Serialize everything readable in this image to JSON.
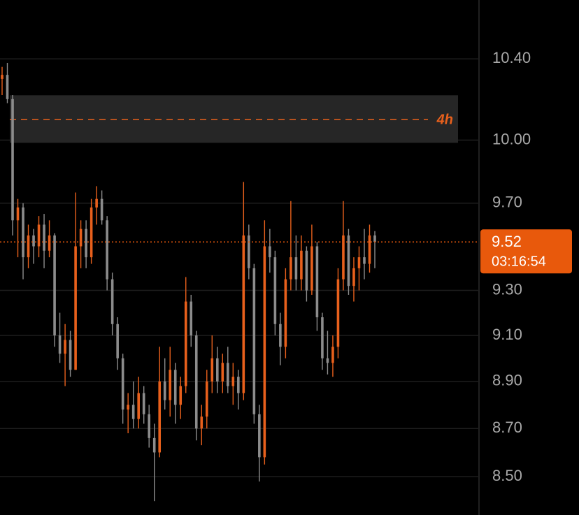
{
  "chart_data": {
    "type": "ohlc",
    "scale": "log",
    "ylim": [
      8.344,
      10.7
    ],
    "yticks": [
      {
        "value": 10.4,
        "label": "10.40"
      },
      {
        "value": 10.0,
        "label": "10.00"
      },
      {
        "value": 9.7,
        "label": "9.70"
      },
      {
        "value": 9.3,
        "label": "9.30"
      },
      {
        "value": 9.1,
        "label": "9.10"
      },
      {
        "value": 8.9,
        "label": "8.90"
      },
      {
        "value": 8.7,
        "label": "8.70"
      },
      {
        "value": 8.5,
        "label": "8.50"
      }
    ],
    "grid": true,
    "up_color": "#e8601c",
    "down_color": "#8c8c8c",
    "open": [
      10.3,
      10.32,
      10.2,
      9.62,
      9.68,
      9.45,
      9.55,
      9.5,
      9.6,
      9.48,
      9.55,
      9.1,
      9.02,
      9.08,
      8.95,
      9.5,
      9.58,
      9.45,
      9.68,
      9.72,
      9.62,
      9.35,
      9.15,
      9.0,
      8.78,
      8.8,
      8.74,
      8.85,
      8.76,
      8.66,
      8.6,
      8.9,
      8.82,
      8.95,
      8.8,
      8.88,
      9.25,
      9.1,
      8.7,
      8.75,
      8.9,
      9.0,
      8.9,
      8.98,
      8.88,
      8.92,
      8.85,
      9.55,
      9.4,
      8.76,
      8.58,
      9.5,
      9.45,
      9.15,
      9.05,
      9.35,
      9.45,
      9.35,
      9.48,
      9.3,
      9.5,
      9.18,
      9.0,
      8.98,
      9.05,
      9.35,
      9.55,
      9.32,
      9.4,
      9.45,
      9.42,
      9.55
    ],
    "high": [
      10.36,
      10.38,
      10.22,
      9.72,
      9.7,
      9.6,
      9.58,
      9.64,
      9.65,
      9.62,
      9.56,
      9.2,
      9.15,
      9.12,
      9.75,
      9.62,
      9.62,
      9.72,
      9.78,
      9.76,
      9.64,
      9.38,
      9.18,
      9.02,
      8.85,
      8.9,
      8.92,
      8.88,
      8.8,
      8.72,
      9.05,
      9.0,
      9.05,
      8.98,
      8.92,
      9.36,
      9.28,
      9.12,
      8.8,
      8.95,
      9.1,
      9.05,
      9.02,
      9.05,
      8.98,
      8.95,
      9.8,
      9.6,
      9.42,
      8.8,
      9.62,
      9.58,
      9.48,
      9.2,
      9.4,
      9.71,
      9.55,
      9.55,
      9.5,
      9.6,
      9.52,
      9.2,
      9.12,
      9.1,
      9.4,
      9.71,
      9.58,
      9.45,
      9.5,
      9.58,
      9.6,
      9.57
    ],
    "low": [
      10.22,
      10.18,
      9.55,
      9.45,
      9.35,
      9.4,
      9.42,
      9.45,
      9.4,
      9.45,
      9.05,
      8.98,
      8.88,
      8.92,
      8.95,
      9.4,
      9.4,
      9.42,
      9.6,
      9.6,
      9.3,
      9.1,
      8.95,
      8.72,
      8.68,
      8.7,
      8.7,
      8.72,
      8.62,
      8.4,
      8.58,
      8.78,
      8.75,
      8.72,
      8.74,
      8.85,
      9.05,
      8.65,
      8.63,
      8.7,
      8.85,
      8.85,
      8.85,
      8.85,
      8.8,
      8.78,
      8.82,
      9.35,
      8.72,
      8.48,
      8.55,
      9.38,
      9.1,
      8.97,
      9.0,
      9.3,
      9.3,
      9.3,
      9.25,
      9.28,
      9.12,
      8.95,
      8.93,
      8.92,
      9.0,
      9.3,
      9.28,
      9.25,
      9.3,
      9.35,
      9.38,
      9.4
    ],
    "close": [
      10.32,
      10.2,
      9.62,
      9.68,
      9.45,
      9.55,
      9.5,
      9.6,
      9.48,
      9.55,
      9.1,
      9.02,
      9.08,
      8.95,
      9.5,
      9.58,
      9.45,
      9.68,
      9.72,
      9.62,
      9.35,
      9.15,
      9.0,
      8.78,
      8.8,
      8.74,
      8.85,
      8.76,
      8.66,
      8.6,
      8.9,
      8.82,
      8.95,
      8.8,
      8.88,
      9.25,
      9.1,
      8.7,
      8.75,
      8.9,
      9.0,
      8.9,
      8.98,
      8.88,
      8.92,
      8.85,
      9.55,
      9.4,
      8.76,
      8.58,
      9.5,
      9.45,
      9.15,
      9.05,
      9.35,
      9.45,
      9.35,
      9.48,
      9.3,
      9.5,
      9.18,
      9.0,
      8.98,
      9.05,
      9.35,
      9.55,
      9.32,
      9.4,
      9.45,
      9.42,
      9.55,
      9.52
    ],
    "last_price": {
      "value": 9.52,
      "countdown": "03:16:54",
      "color": "#e8590c"
    },
    "zone": {
      "range": [
        9.987,
        10.219
      ],
      "level": 10.1,
      "label": "4h"
    }
  }
}
